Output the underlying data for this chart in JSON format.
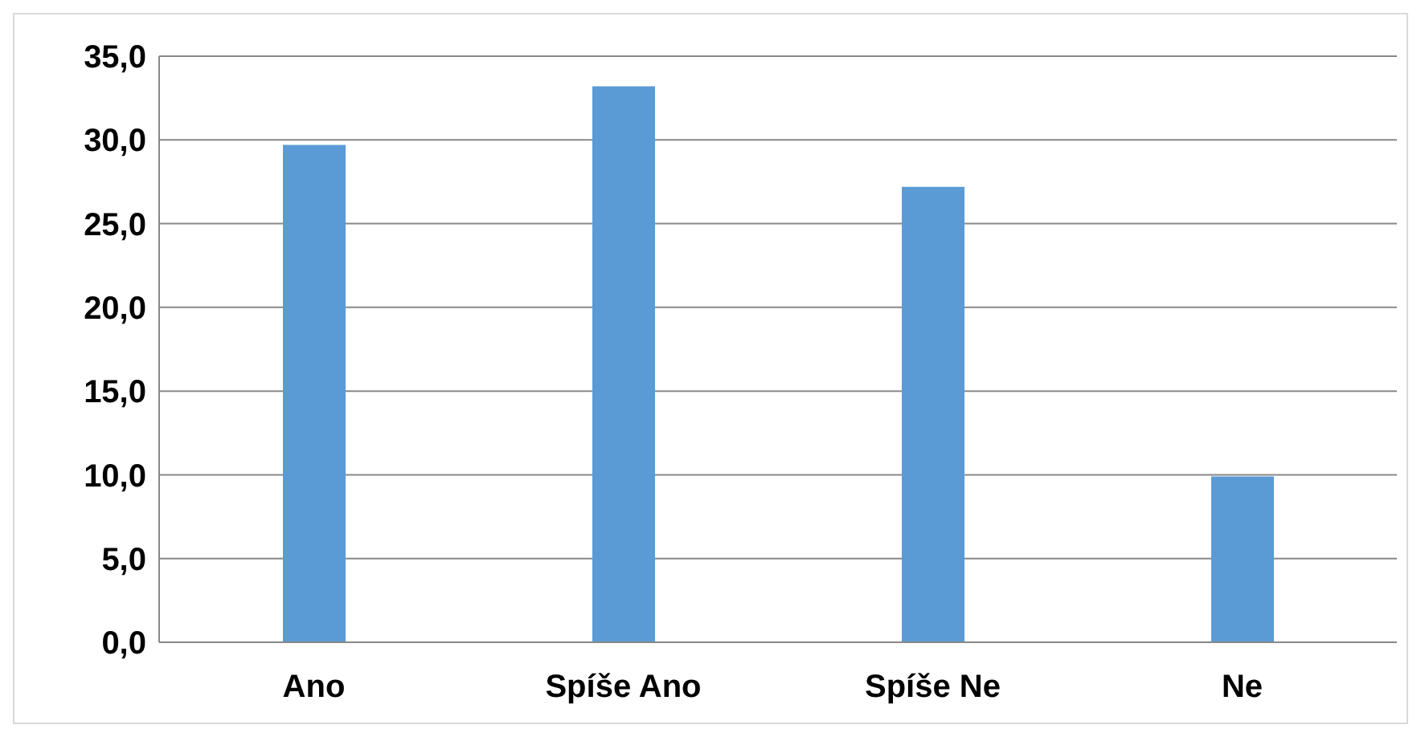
{
  "chart_data": {
    "type": "bar",
    "categories": [
      "Ano",
      "Spíše Ano",
      "Spíše Ne",
      "Ne"
    ],
    "values": [
      29.7,
      33.2,
      27.2,
      9.9
    ],
    "color": "#5b9bd5",
    "ylim": [
      0,
      35
    ],
    "yticks": [
      {
        "value": 0,
        "label": "0,0"
      },
      {
        "value": 5,
        "label": "5,0"
      },
      {
        "value": 10,
        "label": "10,0"
      },
      {
        "value": 15,
        "label": "15,0"
      },
      {
        "value": 20,
        "label": "20,0"
      },
      {
        "value": 25,
        "label": "25,0"
      },
      {
        "value": 30,
        "label": "30,0"
      },
      {
        "value": 35,
        "label": "35,0"
      }
    ],
    "grid": "y",
    "legend": false
  }
}
